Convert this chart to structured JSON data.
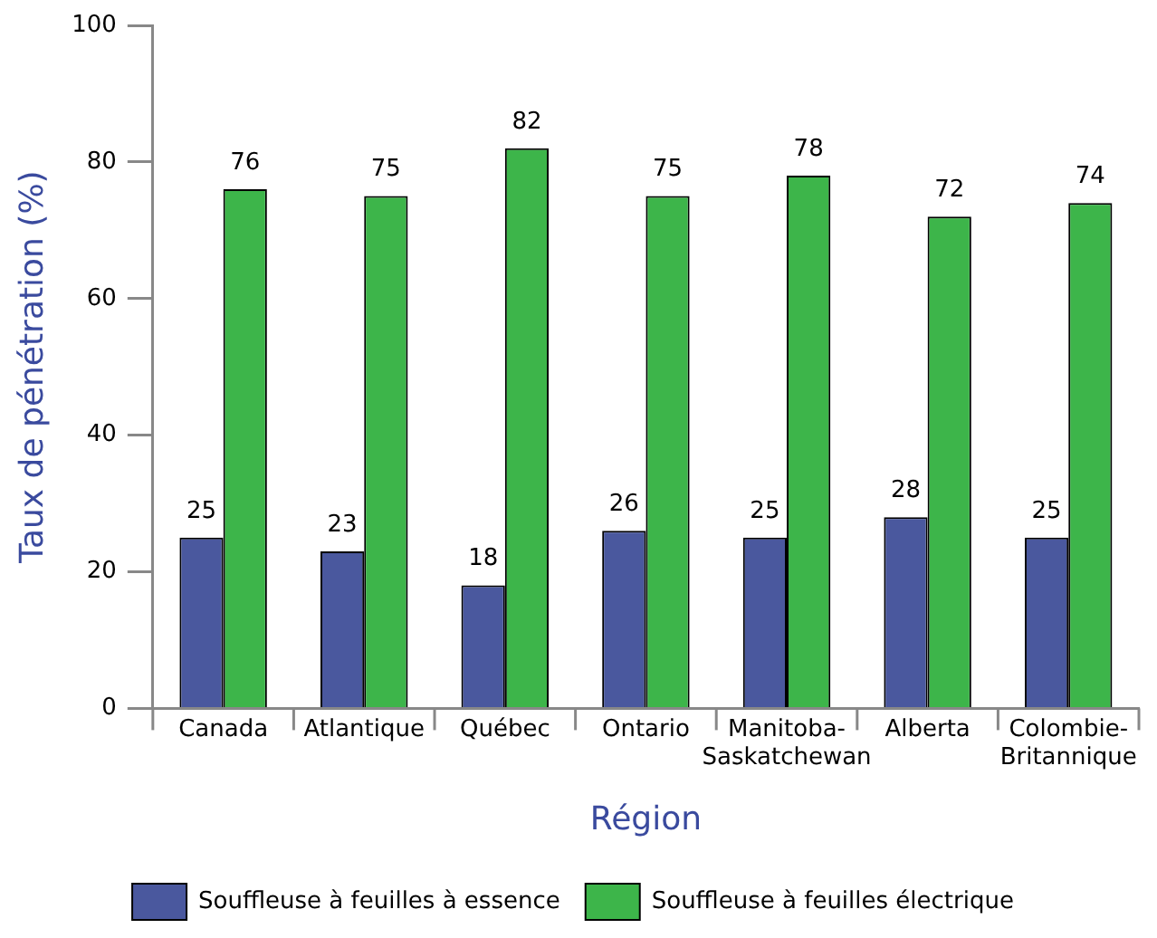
{
  "chart_data": {
    "type": "bar",
    "xlabel": "Région",
    "ylabel": "Taux de pénétration (%)",
    "categories": [
      "Canada",
      "Atlantique",
      "Québec",
      "Ontario",
      "Manitoba-Saskatchewan",
      "Alberta",
      "Colombie-Britannique"
    ],
    "series": [
      {
        "name": "Souffleuse à feuilles à essence",
        "color": "#4a589e",
        "values": [
          25,
          23,
          18,
          26,
          25,
          28,
          25
        ]
      },
      {
        "name": "Souffleuse à feuilles électrique",
        "color": "#3db54a",
        "values": [
          76,
          75,
          82,
          75,
          78,
          72,
          74
        ]
      }
    ],
    "ylim": [
      0,
      100
    ],
    "yticks": [
      0,
      20,
      40,
      60,
      80,
      100
    ],
    "grid": false,
    "legend": "bottom",
    "data_labels": true
  }
}
